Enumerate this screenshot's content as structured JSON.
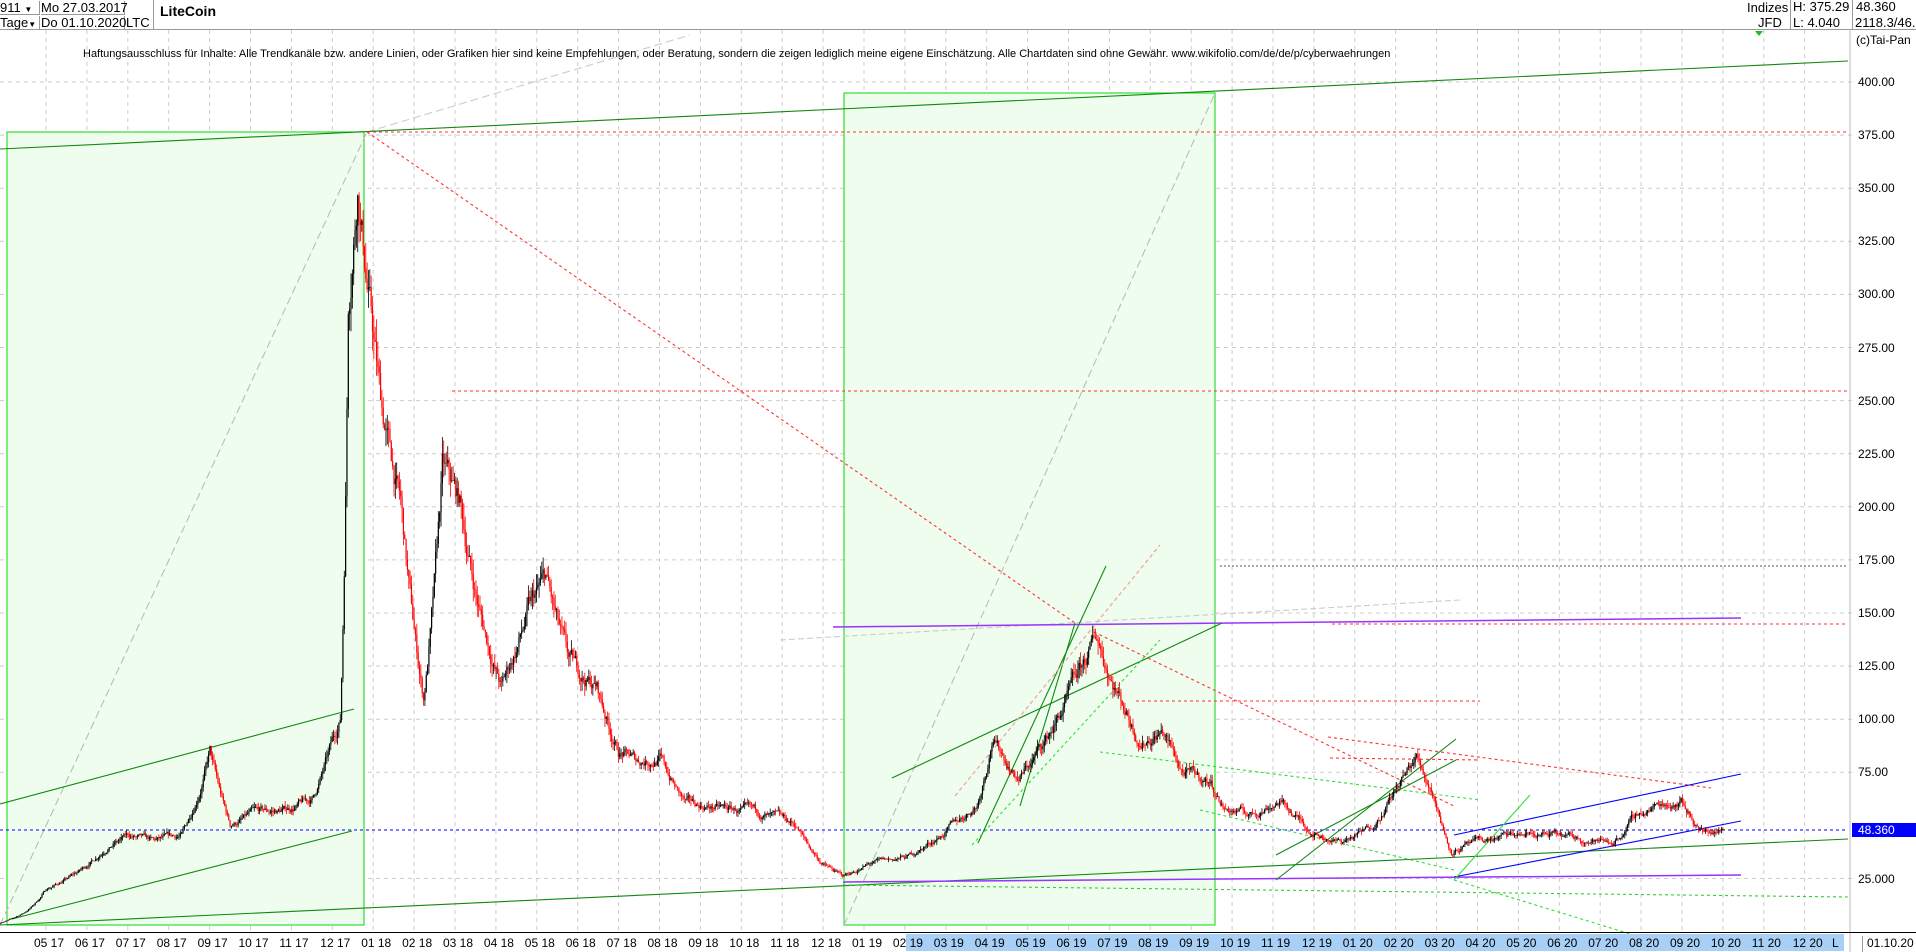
{
  "header": {
    "bars": "911",
    "period": "Tage",
    "date_from": "Mo 27.03.2017",
    "date_to": "Do 01.10.2020",
    "symbol": "LTC",
    "title": "LiteCoin",
    "market": "Indizes",
    "source": "JFD",
    "high": "H: 375.29",
    "low": "L: 4.040",
    "last": "48.360",
    "extra": "2118.3/46.",
    "copyright": "(c)Tai-Pan"
  },
  "disclaimer": "Haftungsausschluss für Inhalte: Alle Trendkanäle bzw. andere Linien, oder Grafiken hier sind keine Empfehlungen, oder Beratung, sondern die zeigen lediglich meine eigene Einschätzung. Alle Chartdaten sind ohne Gewähr.  www.wikifolio.com/de/de/p/cyberwaehrungen",
  "x_axis": {
    "labels": [
      "05 17",
      "06 17",
      "07 17",
      "08 17",
      "09 17",
      "10 17",
      "11 17",
      "12 17",
      "01 18",
      "02 18",
      "03 18",
      "04 18",
      "05 18",
      "06 18",
      "07 18",
      "08 18",
      "09 18",
      "10 18",
      "11 18",
      "12 18",
      "01 19",
      "02 19",
      "03 19",
      "04 19",
      "05 19",
      "06 19",
      "07 19",
      "08 19",
      "09 19",
      "10 19",
      "11 19",
      "12 19",
      "01 20",
      "02 20",
      "03 20",
      "04 20",
      "05 20",
      "06 20",
      "07 20",
      "08 20",
      "09 20",
      "10 20",
      "11 20",
      "12 20"
    ],
    "end_marker": "L",
    "end_date": "01.10.20"
  },
  "colors": {
    "up": "#000000",
    "down": "#ff0000",
    "box_fill": "#eefdee",
    "box_stroke": "#33dd33",
    "last_price_badge": "#0000ff"
  },
  "chart_data": {
    "type": "candlestick",
    "title": "LiteCoin",
    "ylim": [
      0,
      410
    ],
    "y_ticks": [
      "400.00",
      "375.00",
      "350.00",
      "325.00",
      "300.00",
      "275.00",
      "250.00",
      "225.00",
      "200.00",
      "175.00",
      "150.00",
      "125.00",
      "100.00",
      "75.00",
      "25.000"
    ],
    "y_tick_values": [
      400,
      375,
      350,
      325,
      300,
      275,
      250,
      225,
      200,
      175,
      150,
      125,
      100,
      75,
      25
    ],
    "last_price": 48.36,
    "last_price_label": "48.360",
    "high": 375.29,
    "low": 4.04,
    "price_path": [
      [
        "2017-03-27",
        4.04
      ],
      [
        "2017-04-15",
        9
      ],
      [
        "2017-05-01",
        20
      ],
      [
        "2017-05-25",
        28
      ],
      [
        "2017-06-15",
        40
      ],
      [
        "2017-07-01",
        45
      ],
      [
        "2017-07-20",
        42
      ],
      [
        "2017-08-10",
        45
      ],
      [
        "2017-08-31",
        85
      ],
      [
        "2017-09-15",
        50
      ],
      [
        "2017-10-01",
        55
      ],
      [
        "2017-10-25",
        57
      ],
      [
        "2017-11-15",
        62
      ],
      [
        "2017-11-30",
        88
      ],
      [
        "2017-12-06",
        100
      ],
      [
        "2017-12-12",
        300
      ],
      [
        "2017-12-19",
        360
      ],
      [
        "2018-01-05",
        250
      ],
      [
        "2018-01-20",
        200
      ],
      [
        "2018-02-06",
        110
      ],
      [
        "2018-02-20",
        215
      ],
      [
        "2018-03-05",
        200
      ],
      [
        "2018-03-20",
        150
      ],
      [
        "2018-04-05",
        115
      ],
      [
        "2018-04-25",
        150
      ],
      [
        "2018-05-08",
        165
      ],
      [
        "2018-05-25",
        125
      ],
      [
        "2018-06-15",
        115
      ],
      [
        "2018-07-01",
        85
      ],
      [
        "2018-07-15",
        80
      ],
      [
        "2018-08-01",
        82
      ],
      [
        "2018-08-20",
        60
      ],
      [
        "2018-09-15",
        58
      ],
      [
        "2018-10-15",
        55
      ],
      [
        "2018-11-10",
        50
      ],
      [
        "2018-11-30",
        32
      ],
      [
        "2018-12-15",
        26
      ],
      [
        "2019-01-05",
        32
      ],
      [
        "2019-02-01",
        35
      ],
      [
        "2019-02-25",
        45
      ],
      [
        "2019-03-25",
        60
      ],
      [
        "2019-04-05",
        92
      ],
      [
        "2019-04-25",
        72
      ],
      [
        "2019-05-15",
        90
      ],
      [
        "2019-06-01",
        110
      ],
      [
        "2019-06-22",
        138
      ],
      [
        "2019-07-10",
        110
      ],
      [
        "2019-07-25",
        90
      ],
      [
        "2019-08-10",
        95
      ],
      [
        "2019-08-25",
        75
      ],
      [
        "2019-09-15",
        70
      ],
      [
        "2019-09-25",
        58
      ],
      [
        "2019-10-15",
        55
      ],
      [
        "2019-11-05",
        62
      ],
      [
        "2019-11-30",
        47
      ],
      [
        "2019-12-20",
        42
      ],
      [
        "2020-01-10",
        48
      ],
      [
        "2020-02-01",
        68
      ],
      [
        "2020-02-15",
        82
      ],
      [
        "2020-02-28",
        65
      ],
      [
        "2020-03-12",
        38
      ],
      [
        "2020-03-20",
        40
      ],
      [
        "2020-04-15",
        44
      ],
      [
        "2020-05-10",
        46
      ],
      [
        "2020-06-10",
        44
      ],
      [
        "2020-07-10",
        42
      ],
      [
        "2020-07-28",
        55
      ],
      [
        "2020-08-15",
        60
      ],
      [
        "2020-08-30",
        62
      ],
      [
        "2020-09-15",
        47
      ],
      [
        "2020-10-01",
        48.36
      ]
    ]
  }
}
